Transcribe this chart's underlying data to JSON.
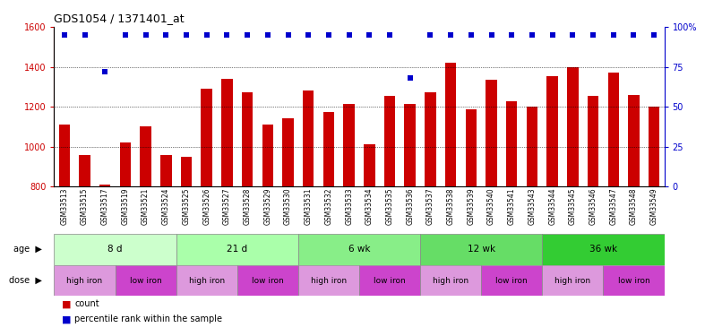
{
  "title": "GDS1054 / 1371401_at",
  "gsm_labels": [
    "GSM33513",
    "GSM33515",
    "GSM33517",
    "GSM33519",
    "GSM33521",
    "GSM33524",
    "GSM33525",
    "GSM33526",
    "GSM33527",
    "GSM33528",
    "GSM33529",
    "GSM33530",
    "GSM33531",
    "GSM33532",
    "GSM33533",
    "GSM33534",
    "GSM33535",
    "GSM33536",
    "GSM33537",
    "GSM33538",
    "GSM33539",
    "GSM33540",
    "GSM33541",
    "GSM33543",
    "GSM33544",
    "GSM33545",
    "GSM33546",
    "GSM33547",
    "GSM33548",
    "GSM33549"
  ],
  "bar_values": [
    1110,
    960,
    810,
    1020,
    1100,
    960,
    950,
    1290,
    1340,
    1270,
    1110,
    1140,
    1280,
    1175,
    1215,
    1010,
    1255,
    1215,
    1270,
    1420,
    1185,
    1335,
    1225,
    1200,
    1355,
    1400,
    1255,
    1370,
    1260,
    1200
  ],
  "percentile_values": [
    95,
    95,
    72,
    95,
    95,
    95,
    95,
    95,
    95,
    95,
    95,
    95,
    95,
    95,
    95,
    95,
    95,
    68,
    95,
    95,
    95,
    95,
    95,
    95,
    95,
    95,
    95,
    95,
    95,
    95
  ],
  "bar_color": "#cc0000",
  "percentile_color": "#0000cc",
  "ymin": 800,
  "ymax": 1600,
  "y_ticks": [
    800,
    1000,
    1200,
    1400,
    1600
  ],
  "y2_ticks": [
    0,
    25,
    50,
    75,
    100
  ],
  "y2_tick_labels": [
    "0",
    "25",
    "50",
    "75",
    "100%"
  ],
  "age_groups": [
    {
      "label": "8 d",
      "start": 0,
      "end": 6,
      "color": "#ccffcc"
    },
    {
      "label": "21 d",
      "start": 6,
      "end": 12,
      "color": "#aaffaa"
    },
    {
      "label": "6 wk",
      "start": 12,
      "end": 18,
      "color": "#88ee88"
    },
    {
      "label": "12 wk",
      "start": 18,
      "end": 24,
      "color": "#66dd66"
    },
    {
      "label": "36 wk",
      "start": 24,
      "end": 30,
      "color": "#33cc33"
    }
  ],
  "dose_groups": [
    {
      "label": "high iron",
      "start": 0,
      "end": 3,
      "is_high": true
    },
    {
      "label": "low iron",
      "start": 3,
      "end": 6,
      "is_high": false
    },
    {
      "label": "high iron",
      "start": 6,
      "end": 9,
      "is_high": true
    },
    {
      "label": "low iron",
      "start": 9,
      "end": 12,
      "is_high": false
    },
    {
      "label": "high iron",
      "start": 12,
      "end": 15,
      "is_high": true
    },
    {
      "label": "low iron",
      "start": 15,
      "end": 18,
      "is_high": false
    },
    {
      "label": "high iron",
      "start": 18,
      "end": 21,
      "is_high": true
    },
    {
      "label": "low iron",
      "start": 21,
      "end": 24,
      "is_high": false
    },
    {
      "label": "high iron",
      "start": 24,
      "end": 27,
      "is_high": true
    },
    {
      "label": "low iron",
      "start": 27,
      "end": 30,
      "is_high": false
    }
  ],
  "dose_high_color": "#dd99dd",
  "dose_low_color": "#cc44cc",
  "legend_count_color": "#cc0000",
  "legend_percentile_color": "#0000cc"
}
